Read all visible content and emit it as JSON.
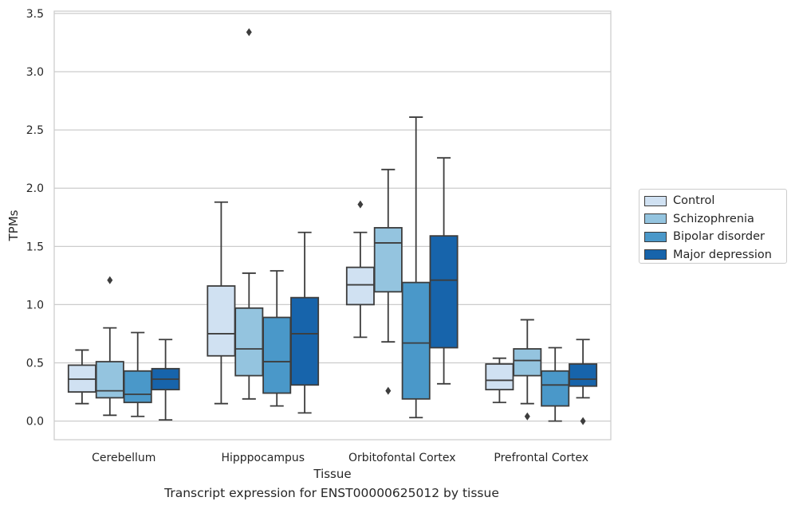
{
  "chart_data": {
    "type": "box",
    "title": "",
    "caption": "Transcript expression for ENST00000625012 by tissue",
    "xlabel": "Tissue",
    "ylabel": "TPMs",
    "ylim": [
      -0.16,
      3.52
    ],
    "yticks": [
      "0.0",
      "0.5",
      "1.0",
      "1.5",
      "2.0",
      "2.5",
      "3.0",
      "3.5"
    ],
    "grid": true,
    "legend_position": "right",
    "categories": [
      "Cerebellum",
      "Hipppocampus",
      "Orbitofontal Cortex",
      "Prefrontal Cortex"
    ],
    "series": [
      {
        "name": "Control",
        "color": "#d0e1f2",
        "boxes": [
          {
            "lower_whisker": 0.15,
            "q1": 0.25,
            "median": 0.36,
            "q3": 0.48,
            "upper_whisker": 0.61,
            "outliers": []
          },
          {
            "lower_whisker": 0.15,
            "q1": 0.56,
            "median": 0.75,
            "q3": 1.16,
            "upper_whisker": 1.88,
            "outliers": []
          },
          {
            "lower_whisker": 0.72,
            "q1": 1.0,
            "median": 1.17,
            "q3": 1.32,
            "upper_whisker": 1.62,
            "outliers": [
              1.86
            ]
          },
          {
            "lower_whisker": 0.16,
            "q1": 0.27,
            "median": 0.35,
            "q3": 0.49,
            "upper_whisker": 0.54,
            "outliers": []
          }
        ]
      },
      {
        "name": "Schizophrenia",
        "color": "#94c4df",
        "boxes": [
          {
            "lower_whisker": 0.05,
            "q1": 0.2,
            "median": 0.26,
            "q3": 0.51,
            "upper_whisker": 0.8,
            "outliers": [
              1.21
            ]
          },
          {
            "lower_whisker": 0.19,
            "q1": 0.39,
            "median": 0.62,
            "q3": 0.97,
            "upper_whisker": 1.27,
            "outliers": [
              3.34
            ]
          },
          {
            "lower_whisker": 0.68,
            "q1": 1.11,
            "median": 1.53,
            "q3": 1.66,
            "upper_whisker": 2.16,
            "outliers": [
              0.26
            ]
          },
          {
            "lower_whisker": 0.15,
            "q1": 0.39,
            "median": 0.52,
            "q3": 0.62,
            "upper_whisker": 0.87,
            "outliers": [
              0.04
            ]
          }
        ]
      },
      {
        "name": "Bipolar disorder",
        "color": "#4a98c9",
        "boxes": [
          {
            "lower_whisker": 0.04,
            "q1": 0.16,
            "median": 0.23,
            "q3": 0.43,
            "upper_whisker": 0.76,
            "outliers": []
          },
          {
            "lower_whisker": 0.13,
            "q1": 0.24,
            "median": 0.51,
            "q3": 0.89,
            "upper_whisker": 1.29,
            "outliers": []
          },
          {
            "lower_whisker": 0.03,
            "q1": 0.19,
            "median": 0.67,
            "q3": 1.19,
            "upper_whisker": 2.61,
            "outliers": []
          },
          {
            "lower_whisker": 0.0,
            "q1": 0.13,
            "median": 0.31,
            "q3": 0.43,
            "upper_whisker": 0.63,
            "outliers": []
          }
        ]
      },
      {
        "name": "Major depression",
        "color": "#1764ab",
        "boxes": [
          {
            "lower_whisker": 0.01,
            "q1": 0.27,
            "median": 0.36,
            "q3": 0.45,
            "upper_whisker": 0.7,
            "outliers": []
          },
          {
            "lower_whisker": 0.07,
            "q1": 0.31,
            "median": 0.75,
            "q3": 1.06,
            "upper_whisker": 1.62,
            "outliers": []
          },
          {
            "lower_whisker": 0.32,
            "q1": 0.63,
            "median": 1.21,
            "q3": 1.59,
            "upper_whisker": 2.26,
            "outliers": []
          },
          {
            "lower_whisker": 0.2,
            "q1": 0.3,
            "median": 0.36,
            "q3": 0.49,
            "upper_whisker": 0.7,
            "outliers": [
              0.0
            ]
          }
        ]
      }
    ]
  }
}
